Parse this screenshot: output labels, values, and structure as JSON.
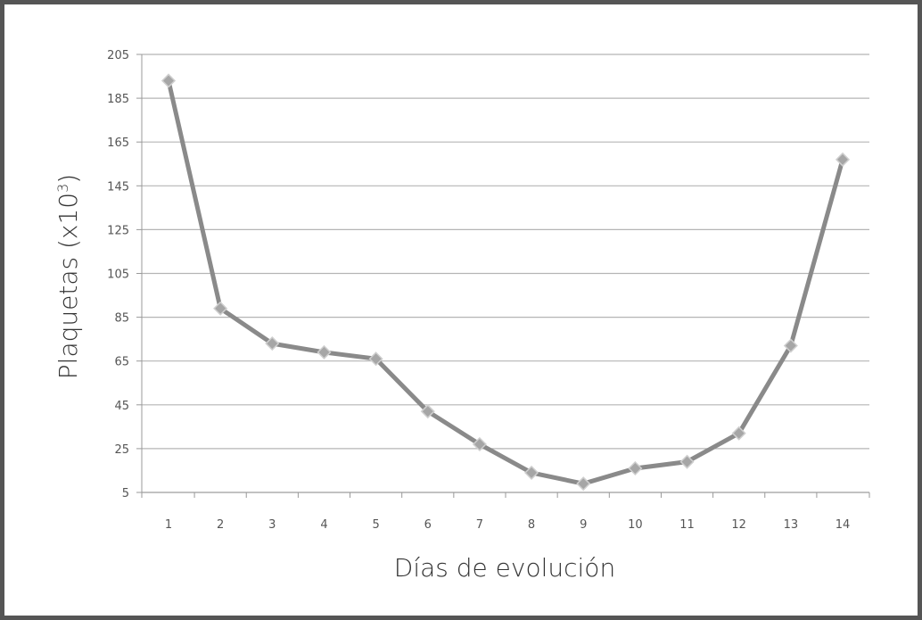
{
  "chart_data": {
    "type": "line",
    "title": "",
    "xlabel": "Días de evolución",
    "ylabel": {
      "prefix": "Plaquetas (x10",
      "superscript": "3",
      "suffix": ")"
    },
    "categories": [
      "1",
      "2",
      "3",
      "4",
      "5",
      "6",
      "7",
      "8",
      "9",
      "10",
      "11",
      "12",
      "13",
      "14"
    ],
    "series": [
      {
        "values": [
          193,
          89,
          73,
          69,
          66,
          42,
          27,
          14,
          9,
          16,
          19,
          32,
          72,
          157
        ]
      }
    ],
    "ylim": [
      5,
      205
    ],
    "yticks": [
      "205",
      "185",
      "165",
      "145",
      "125",
      "105",
      "85",
      "65",
      "45",
      "25",
      "5"
    ],
    "grid": true,
    "line_color": "#8a8a8a",
    "marker_color": "#a6a6a6",
    "grid_color": "#b5b5b5"
  }
}
